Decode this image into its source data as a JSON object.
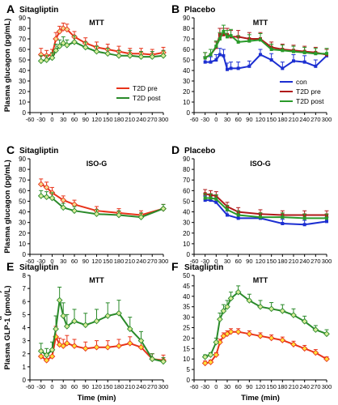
{
  "chart_data": [
    {
      "type": "line",
      "letter": "A",
      "title": "Sitagliptin",
      "inner_title": "MTT",
      "ylabel": "Plasma glucagon  (pg/mL)",
      "xlabel": "",
      "ylim": [
        0,
        90
      ],
      "yticks": [
        0,
        10,
        20,
        30,
        40,
        50,
        60,
        70,
        80,
        90
      ],
      "xlim": [
        -60,
        300
      ],
      "xticks": [
        -60,
        -30,
        0,
        30,
        60,
        90,
        120,
        150,
        180,
        210,
        240,
        270,
        300
      ],
      "legend": "lower-right",
      "series": [
        {
          "name": "T2D pre",
          "color": "#e8331a",
          "fill": "#f4d98a",
          "x": [
            -30,
            -15,
            0,
            10,
            20,
            30,
            40,
            60,
            90,
            120,
            150,
            180,
            210,
            240,
            270,
            300
          ],
          "y": [
            55,
            54,
            55,
            70,
            77,
            80,
            79,
            72,
            66,
            62,
            60,
            58,
            56,
            56,
            55,
            57
          ],
          "err": [
            6,
            5,
            5,
            6,
            5,
            5,
            5,
            5,
            5,
            5,
            5,
            5,
            5,
            5,
            5,
            5
          ]
        },
        {
          "name": "T2D post",
          "color": "#2a8a2a",
          "fill": "#d9ec9a",
          "x": [
            -30,
            -15,
            0,
            10,
            20,
            30,
            40,
            60,
            90,
            120,
            150,
            180,
            210,
            240,
            270,
            300
          ],
          "y": [
            49,
            50,
            52,
            59,
            63,
            66,
            64,
            67,
            62,
            58,
            56,
            54,
            54,
            53,
            53,
            54
          ],
          "err": [
            5,
            4,
            5,
            6,
            6,
            6,
            5,
            6,
            5,
            5,
            5,
            5,
            5,
            5,
            5,
            5
          ]
        }
      ]
    },
    {
      "type": "line",
      "letter": "B",
      "title": "Placebo",
      "inner_title": "MTT",
      "ylabel": "",
      "xlabel": "",
      "ylim": [
        0,
        90
      ],
      "yticks": [
        0,
        10,
        20,
        30,
        40,
        50,
        60,
        70,
        80,
        90
      ],
      "xlim": [
        -60,
        300
      ],
      "xticks": [
        -60,
        -30,
        0,
        30,
        60,
        90,
        120,
        150,
        180,
        210,
        240,
        270,
        300
      ],
      "legend": "lower-right",
      "series": [
        {
          "name": "con",
          "color": "#1c2fd1",
          "fill": "#1c2fd1",
          "x": [
            -30,
            -15,
            0,
            10,
            20,
            30,
            40,
            60,
            90,
            120,
            150,
            180,
            210,
            240,
            270,
            300
          ],
          "y": [
            48,
            48,
            50,
            55,
            54,
            41,
            42,
            42,
            44,
            55,
            50,
            42,
            49,
            48,
            44,
            54
          ],
          "err": [
            5,
            5,
            5,
            6,
            6,
            6,
            6,
            6,
            5,
            5,
            6,
            6,
            6,
            6,
            6,
            6
          ]
        },
        {
          "name": "T2D pre",
          "color": "#b01a1a",
          "fill": "#b01a1a",
          "x": [
            -30,
            -15,
            0,
            10,
            20,
            30,
            40,
            60,
            90,
            120,
            150,
            180,
            210,
            240,
            270,
            300
          ],
          "y": [
            52,
            55,
            62,
            74,
            74,
            74,
            72,
            72,
            70,
            70,
            62,
            60,
            59,
            58,
            57,
            55
          ],
          "err": [
            5,
            5,
            5,
            6,
            6,
            6,
            6,
            6,
            6,
            6,
            5,
            5,
            5,
            5,
            5,
            5
          ]
        },
        {
          "name": "T2D post",
          "color": "#2a9a2a",
          "fill": "#2a9a2a",
          "x": [
            -30,
            -15,
            0,
            10,
            20,
            30,
            40,
            60,
            90,
            120,
            150,
            180,
            210,
            240,
            270,
            300
          ],
          "y": [
            52,
            55,
            63,
            70,
            77,
            72,
            73,
            67,
            68,
            69,
            60,
            59,
            58,
            57,
            56,
            56
          ],
          "err": [
            5,
            5,
            5,
            6,
            6,
            6,
            6,
            6,
            6,
            6,
            5,
            5,
            5,
            5,
            5,
            5
          ]
        }
      ]
    },
    {
      "type": "line",
      "letter": "C",
      "title": "Sitagliptin",
      "inner_title": "ISO-G",
      "ylabel": "Plasma glucagon  (pg/mL)",
      "xlabel": "",
      "ylim": [
        0,
        90
      ],
      "yticks": [
        0,
        10,
        20,
        30,
        40,
        50,
        60,
        70,
        80,
        90
      ],
      "xlim": [
        -60,
        300
      ],
      "xticks": [
        -60,
        -30,
        0,
        30,
        60,
        90,
        120,
        150,
        180,
        210,
        240,
        270,
        300
      ],
      "legend": "",
      "series": [
        {
          "name": "T2D pre",
          "color": "#e8331a",
          "fill": "#f4d98a",
          "x": [
            -30,
            -15,
            0,
            30,
            60,
            120,
            180,
            240,
            300
          ],
          "y": [
            66,
            63,
            58,
            51,
            47,
            41,
            39,
            37,
            43
          ],
          "err": [
            5,
            5,
            5,
            4,
            4,
            4,
            4,
            4,
            4
          ]
        },
        {
          "name": "T2D post",
          "color": "#2a8a2a",
          "fill": "#d9ec9a",
          "x": [
            -30,
            -15,
            0,
            30,
            60,
            120,
            180,
            240,
            300
          ],
          "y": [
            55,
            54,
            53,
            44,
            41,
            38,
            37,
            35,
            43
          ],
          "err": [
            5,
            5,
            5,
            4,
            4,
            4,
            4,
            4,
            4
          ]
        }
      ]
    },
    {
      "type": "line",
      "letter": "D",
      "title": "Placebo",
      "inner_title": "ISO-G",
      "ylabel": "",
      "xlabel": "",
      "ylim": [
        0,
        90
      ],
      "yticks": [
        0,
        10,
        20,
        30,
        40,
        50,
        60,
        70,
        80,
        90
      ],
      "xlim": [
        -60,
        300
      ],
      "xticks": [
        -60,
        -30,
        0,
        30,
        60,
        90,
        120,
        150,
        180,
        210,
        240,
        270,
        300
      ],
      "legend": "",
      "series": [
        {
          "name": "con",
          "color": "#1c2fd1",
          "fill": "#1c2fd1",
          "x": [
            -30,
            -15,
            0,
            30,
            60,
            120,
            180,
            240,
            300
          ],
          "y": [
            51,
            51,
            49,
            37,
            34,
            34,
            29,
            28,
            31
          ],
          "err": [
            4,
            4,
            4,
            4,
            4,
            4,
            4,
            4,
            4
          ]
        },
        {
          "name": "T2D pre",
          "color": "#b01a1a",
          "fill": "#b01a1a",
          "x": [
            -30,
            -15,
            0,
            30,
            60,
            120,
            180,
            240,
            300
          ],
          "y": [
            57,
            56,
            55,
            45,
            40,
            38,
            37,
            37,
            37
          ],
          "err": [
            4,
            4,
            4,
            4,
            4,
            4,
            4,
            4,
            4
          ]
        },
        {
          "name": "T2D post",
          "color": "#2a9a2a",
          "fill": "#2a9a2a",
          "x": [
            -30,
            -15,
            0,
            30,
            60,
            120,
            180,
            240,
            300
          ],
          "y": [
            53,
            53,
            52,
            42,
            37,
            35,
            35,
            34,
            34
          ],
          "err": [
            4,
            4,
            4,
            4,
            4,
            4,
            4,
            4,
            4
          ]
        }
      ]
    },
    {
      "type": "line",
      "letter": "E",
      "title": "Sitagliptin",
      "inner_title": "MTT",
      "ylabel": "Plasma GLP-1 (pmol/L)",
      "xlabel": "Time (min)",
      "ylim": [
        0,
        8
      ],
      "yticks": [
        0,
        1,
        2,
        3,
        4,
        5,
        6,
        7,
        8
      ],
      "xlim": [
        -60,
        300
      ],
      "xticks": [
        -60,
        -30,
        0,
        30,
        60,
        90,
        120,
        150,
        180,
        210,
        240,
        270,
        300
      ],
      "legend": "",
      "series": [
        {
          "name": "",
          "color": "#e8331a",
          "fill": "#ffe23a",
          "x": [
            -30,
            -15,
            0,
            10,
            20,
            30,
            40,
            60,
            90,
            120,
            150,
            180,
            210,
            240,
            270,
            300
          ],
          "y": [
            1.8,
            1.5,
            1.8,
            3.3,
            2.7,
            2.6,
            2.8,
            2.6,
            2.4,
            2.5,
            2.5,
            2.6,
            2.8,
            2.5,
            1.6,
            1.5
          ],
          "err": [
            0.5,
            0.4,
            0.5,
            0.8,
            0.5,
            0.5,
            0.6,
            0.5,
            0.5,
            0.5,
            0.5,
            0.5,
            0.5,
            0.5,
            0.4,
            0.4
          ]
        },
        {
          "name": "",
          "color": "#2a8a2a",
          "fill": "#d9ec9a",
          "x": [
            -30,
            -15,
            0,
            10,
            20,
            30,
            40,
            60,
            90,
            120,
            150,
            180,
            210,
            240,
            270,
            300
          ],
          "y": [
            2.2,
            1.9,
            2.3,
            3.9,
            6.1,
            4.9,
            4.1,
            4.5,
            4.2,
            4.5,
            4.9,
            5.1,
            3.9,
            3.0,
            1.6,
            1.4
          ],
          "err": [
            0.6,
            0.5,
            0.6,
            1.0,
            1.0,
            1.0,
            0.9,
            0.9,
            0.9,
            0.9,
            1.0,
            1.0,
            0.9,
            0.7,
            0.4,
            0.3
          ]
        }
      ]
    },
    {
      "type": "line",
      "letter": "F",
      "title": "Sitagliptin",
      "inner_title": "MTT",
      "ylabel": "Plasma GIP (pmol/L)",
      "xlabel": "Time (min)",
      "ylim": [
        0,
        50
      ],
      "yticks": [
        0,
        5,
        10,
        15,
        20,
        25,
        30,
        35,
        40,
        45,
        50
      ],
      "xlim": [
        -60,
        300
      ],
      "xticks": [
        -60,
        -30,
        0,
        30,
        60,
        90,
        120,
        150,
        180,
        210,
        240,
        270,
        300
      ],
      "legend": "",
      "series": [
        {
          "name": "",
          "color": "#e8331a",
          "fill": "#ffe23a",
          "x": [
            -30,
            -15,
            0,
            10,
            20,
            30,
            40,
            60,
            90,
            120,
            150,
            180,
            210,
            240,
            270,
            300
          ],
          "y": [
            8,
            8.5,
            12,
            18,
            21,
            22,
            23,
            23,
            22,
            21,
            20,
            19,
            17,
            15,
            13,
            10
          ],
          "err": [
            1,
            1,
            1,
            1.5,
            1.5,
            1.5,
            1.5,
            1.5,
            1.5,
            1.5,
            1.5,
            1.5,
            1.5,
            1.5,
            1.5,
            1
          ]
        },
        {
          "name": "",
          "color": "#2a8a2a",
          "fill": "#d9ec9a",
          "x": [
            -30,
            -15,
            0,
            10,
            20,
            30,
            40,
            60,
            90,
            120,
            150,
            180,
            210,
            240,
            270,
            300
          ],
          "y": [
            11,
            12,
            18,
            29,
            33,
            35,
            39,
            42,
            38,
            35,
            34,
            33,
            31,
            28,
            24,
            22
          ],
          "err": [
            1,
            1,
            2,
            3,
            3,
            3,
            3,
            3,
            3,
            3,
            3,
            3,
            3,
            2.5,
            2,
            2
          ]
        }
      ]
    }
  ]
}
